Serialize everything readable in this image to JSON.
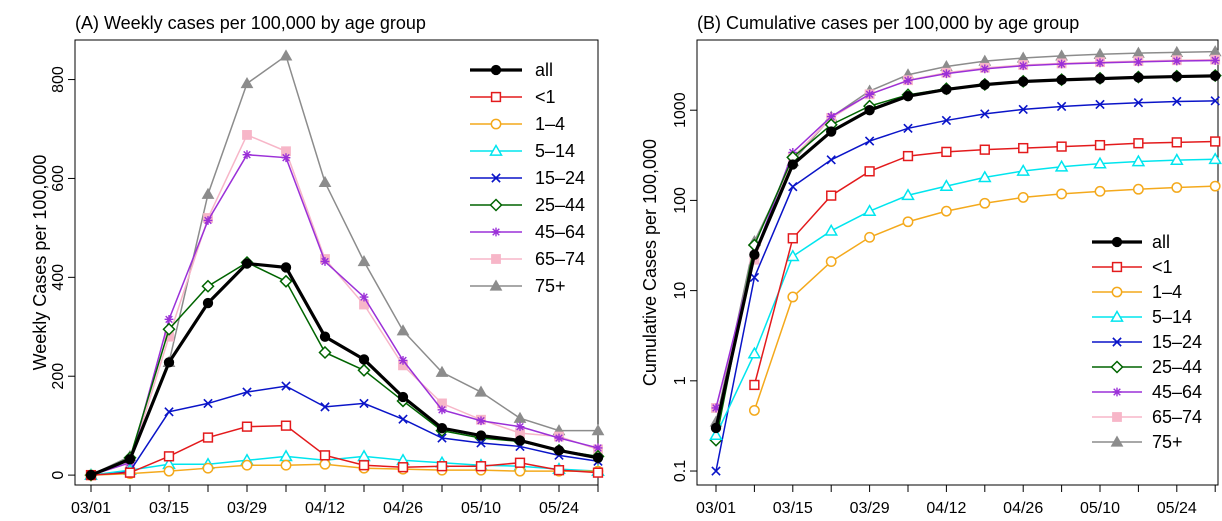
{
  "chart_data": [
    {
      "type": "line",
      "title": "(A) Weekly cases per 100,000 by age group",
      "xlabel": "",
      "ylabel": "Weekly Cases per 100,000",
      "x": [
        "03/01",
        "03/08",
        "03/15",
        "03/22",
        "03/29",
        "04/05",
        "04/12",
        "04/19",
        "04/26",
        "05/03",
        "05/10",
        "05/17",
        "05/24",
        "05/31"
      ],
      "x_tick_labels": [
        "03/01",
        "03/15",
        "03/29",
        "04/12",
        "04/26",
        "05/10",
        "05/24"
      ],
      "y_ticks": [
        0,
        200,
        400,
        600,
        800
      ],
      "ylim": [
        -20,
        880
      ],
      "y_scale": "linear",
      "legend_position": "top-right",
      "series": [
        {
          "name": "all",
          "color": "#000000",
          "marker": "circle-filled",
          "values": [
            0,
            32,
            228,
            348,
            428,
            420,
            280,
            234,
            158,
            95,
            80,
            70,
            50,
            35
          ]
        },
        {
          "name": "<1",
          "color": "#e31a1c",
          "marker": "square-open",
          "values": [
            0,
            5,
            38,
            76,
            98,
            100,
            40,
            20,
            16,
            18,
            18,
            25,
            10,
            5
          ]
        },
        {
          "name": "1–4",
          "color": "#f4a91c",
          "marker": "circle-open",
          "values": [
            0,
            3,
            8,
            14,
            20,
            20,
            22,
            14,
            12,
            10,
            10,
            8,
            8,
            8
          ]
        },
        {
          "name": "5–14",
          "color": "#00e5ee",
          "marker": "triangle-open",
          "values": [
            0,
            10,
            22,
            22,
            30,
            38,
            30,
            38,
            30,
            25,
            20,
            18,
            12,
            8
          ]
        },
        {
          "name": "15–24",
          "color": "#0a14c8",
          "marker": "x",
          "values": [
            0,
            8,
            128,
            145,
            168,
            180,
            138,
            145,
            113,
            75,
            65,
            58,
            40,
            28
          ]
        },
        {
          "name": "25–44",
          "color": "#006400",
          "marker": "diamond-open",
          "values": [
            0,
            35,
            295,
            382,
            430,
            392,
            248,
            212,
            150,
            90,
            75,
            68,
            50,
            38
          ]
        },
        {
          "name": "45–64",
          "color": "#9b30d8",
          "marker": "asterisk",
          "values": [
            0,
            25,
            315,
            515,
            648,
            642,
            432,
            360,
            232,
            132,
            110,
            98,
            75,
            55
          ]
        },
        {
          "name": "65–74",
          "color": "#f7b6c8",
          "marker": "square-filled",
          "values": [
            0,
            25,
            280,
            520,
            688,
            655,
            437,
            345,
            222,
            145,
            112,
            85,
            78,
            52
          ]
        },
        {
          "name": "75+",
          "color": "#8c8c8c",
          "marker": "triangle-filled",
          "values": [
            0,
            38,
            228,
            568,
            792,
            848,
            592,
            432,
            292,
            208,
            168,
            115,
            90,
            90
          ]
        }
      ]
    },
    {
      "type": "line",
      "title": "(B) Cumulative cases per 100,000 by age group",
      "xlabel": "",
      "ylabel": "Cumulative Cases per 100,000",
      "x": [
        "03/01",
        "03/08",
        "03/15",
        "03/22",
        "03/29",
        "04/05",
        "04/12",
        "04/19",
        "04/26",
        "05/03",
        "05/10",
        "05/17",
        "05/24",
        "05/31"
      ],
      "x_tick_labels": [
        "03/01",
        "03/15",
        "03/29",
        "04/12",
        "04/26",
        "05/10",
        "05/24"
      ],
      "y_ticks": [
        0.1,
        1,
        10,
        100,
        1000
      ],
      "y_tick_labels": [
        "0.1",
        "1",
        "10",
        "100",
        "1000"
      ],
      "ylim": [
        0.07,
        6000
      ],
      "y_scale": "log",
      "legend_position": "bottom-right",
      "series": [
        {
          "name": "all",
          "color": "#000000",
          "marker": "circle-filled",
          "values": [
            0.3,
            25,
            250,
            580,
            1000,
            1430,
            1700,
            1920,
            2080,
            2170,
            2240,
            2310,
            2360,
            2400
          ]
        },
        {
          "name": "<1",
          "color": "#e31a1c",
          "marker": "square-open",
          "values": [
            null,
            0.9,
            38,
            113,
            210,
            310,
            345,
            365,
            380,
            395,
            410,
            430,
            440,
            450
          ]
        },
        {
          "name": "1–4",
          "color": "#f4a91c",
          "marker": "circle-open",
          "values": [
            null,
            0.47,
            8.5,
            21,
            39,
            58,
            76,
            93,
            108,
            118,
            126,
            133,
            139,
            144
          ]
        },
        {
          "name": "5–14",
          "color": "#00e5ee",
          "marker": "triangle-open",
          "values": [
            0.25,
            2,
            24,
            46,
            76,
            114,
            144,
            180,
            212,
            236,
            256,
            270,
            280,
            286
          ]
        },
        {
          "name": "15–24",
          "color": "#0a14c8",
          "marker": "x",
          "values": [
            0.1,
            14,
            142,
            282,
            455,
            630,
            770,
            910,
            1020,
            1100,
            1160,
            1210,
            1250,
            1270
          ]
        },
        {
          "name": "25–44",
          "color": "#006400",
          "marker": "diamond-open",
          "values": [
            0.22,
            32,
            300,
            690,
            1110,
            1480,
            1730,
            1930,
            2090,
            2180,
            2260,
            2330,
            2380,
            2420
          ]
        },
        {
          "name": "45–64",
          "color": "#9b30d8",
          "marker": "asterisk",
          "values": [
            0.5,
            25,
            340,
            850,
            1500,
            2130,
            2540,
            2870,
            3110,
            3250,
            3350,
            3430,
            3510,
            3560
          ]
        },
        {
          "name": "65–74",
          "color": "#f7b6c8",
          "marker": "square-filled",
          "values": [
            0.5,
            22,
            300,
            820,
            1500,
            2150,
            2600,
            2950,
            3170,
            3300,
            3410,
            3500,
            3580,
            3630
          ]
        },
        {
          "name": "75+",
          "color": "#8c8c8c",
          "marker": "triangle-filled",
          "values": [
            0.35,
            35,
            270,
            840,
            1630,
            2470,
            3050,
            3500,
            3790,
            4000,
            4170,
            4290,
            4380,
            4460
          ]
        }
      ]
    }
  ]
}
